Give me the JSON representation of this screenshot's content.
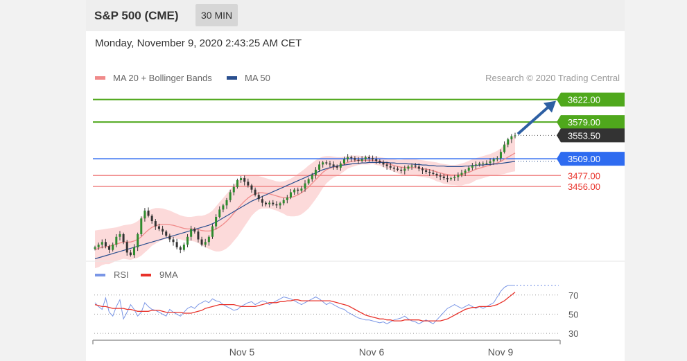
{
  "header": {
    "title": "S&P 500 (CME)",
    "timeframe": "30 MIN"
  },
  "datetime": "Monday, November 9, 2020 2:43:25 AM CET",
  "copyright": "Research © 2020 Trading Central",
  "colors": {
    "resistance": "#4fa81c",
    "pivot": "#2e6bf0",
    "support": "#f08a8a",
    "support_text": "#e8322a",
    "current": "#333333",
    "ma20": "#f08a8a",
    "band": "#fbd3d3",
    "ma50": "#2a4f8f",
    "arrow": "#2d5fa3",
    "rsi": "#7a96e6",
    "rsi_ma": "#e8322a",
    "candle": "#2e8b2e"
  },
  "chart_data": [
    {
      "type": "candlestick",
      "legend": [
        {
          "name": "MA 20 + Bollinger Bands",
          "color": "#f08a8a"
        },
        {
          "name": "MA 50",
          "color": "#2a4f8f"
        }
      ],
      "ylim": [
        3320,
        3640
      ],
      "x_ticks": [
        "Nov 5",
        "Nov 6",
        "Nov 9"
      ],
      "price_levels": [
        {
          "label": "3622.00",
          "value": 3622.0,
          "kind": "resistance"
        },
        {
          "label": "3579.00",
          "value": 3579.0,
          "kind": "resistance"
        },
        {
          "label": "3553.50",
          "value": 3553.5,
          "kind": "current"
        },
        {
          "label": "3509.00",
          "value": 3509.0,
          "kind": "pivot"
        },
        {
          "label": "3477.00",
          "value": 3477.0,
          "kind": "support"
        },
        {
          "label": "3456.00",
          "value": 3456.0,
          "kind": "support"
        }
      ],
      "close": [
        3340,
        3345,
        3350,
        3342,
        3335,
        3345,
        3360,
        3365,
        3350,
        3330,
        3325,
        3340,
        3365,
        3395,
        3410,
        3400,
        3390,
        3380,
        3375,
        3370,
        3362,
        3355,
        3350,
        3340,
        3335,
        3345,
        3360,
        3375,
        3370,
        3355,
        3345,
        3350,
        3360,
        3380,
        3398,
        3412,
        3420,
        3430,
        3445,
        3455,
        3468,
        3472,
        3465,
        3458,
        3450,
        3440,
        3432,
        3425,
        3422,
        3425,
        3422,
        3420,
        3424,
        3430,
        3435,
        3445,
        3450,
        3448,
        3452,
        3462,
        3470,
        3478,
        3488,
        3498,
        3502,
        3500,
        3498,
        3495,
        3492,
        3500,
        3508,
        3512,
        3510,
        3507,
        3505,
        3508,
        3512,
        3510,
        3508,
        3505,
        3502,
        3498,
        3495,
        3492,
        3490,
        3488,
        3486,
        3490,
        3494,
        3496,
        3494,
        3490,
        3487,
        3484,
        3482,
        3480,
        3477,
        3475,
        3472,
        3470,
        3472,
        3474,
        3478,
        3482,
        3486,
        3492,
        3496,
        3498,
        3500,
        3500,
        3501,
        3504,
        3508,
        3510,
        3522,
        3536,
        3546,
        3552,
        3553.5
      ],
      "ma20": [
        3335,
        3338,
        3340,
        3341,
        3342,
        3344,
        3346,
        3348,
        3350,
        3350,
        3350,
        3352,
        3355,
        3360,
        3367,
        3373,
        3378,
        3381,
        3383,
        3384,
        3384,
        3383,
        3382,
        3380,
        3378,
        3376,
        3375,
        3375,
        3375,
        3374,
        3372,
        3371,
        3371,
        3372,
        3375,
        3379,
        3384,
        3390,
        3397,
        3405,
        3413,
        3421,
        3428,
        3434,
        3439,
        3442,
        3444,
        3444,
        3443,
        3442,
        3440,
        3438,
        3436,
        3435,
        3434,
        3435,
        3437,
        3440,
        3444,
        3449,
        3455,
        3462,
        3469,
        3476,
        3483,
        3488,
        3491,
        3493,
        3494,
        3496,
        3499,
        3502,
        3504,
        3505,
        3506,
        3506,
        3506,
        3506,
        3506,
        3505,
        3504,
        3502,
        3500,
        3498,
        3496,
        3494,
        3493,
        3492,
        3492,
        3492,
        3492,
        3491,
        3490,
        3489,
        3488,
        3486,
        3484,
        3482,
        3480,
        3479,
        3478,
        3478,
        3478,
        3479,
        3481,
        3483,
        3486,
        3489,
        3491,
        3493,
        3495,
        3497,
        3499,
        3501,
        3504,
        3508,
        3512,
        3516,
        3520
      ],
      "upper_band": [
        3372,
        3373,
        3374,
        3375,
        3376,
        3377,
        3378,
        3380,
        3382,
        3383,
        3384,
        3386,
        3390,
        3396,
        3404,
        3410,
        3413,
        3415,
        3415,
        3414,
        3412,
        3410,
        3407,
        3404,
        3401,
        3399,
        3398,
        3398,
        3399,
        3400,
        3400,
        3402,
        3405,
        3410,
        3418,
        3426,
        3434,
        3442,
        3450,
        3458,
        3466,
        3472,
        3476,
        3478,
        3478,
        3477,
        3476,
        3474,
        3472,
        3470,
        3468,
        3466,
        3465,
        3466,
        3468,
        3471,
        3475,
        3480,
        3485,
        3490,
        3496,
        3501,
        3506,
        3510,
        3513,
        3514,
        3514,
        3513,
        3512,
        3512,
        3513,
        3514,
        3515,
        3515,
        3515,
        3514,
        3514,
        3514,
        3513,
        3513,
        3512,
        3511,
        3510,
        3509,
        3508,
        3507,
        3507,
        3508,
        3508,
        3508,
        3508,
        3507,
        3506,
        3505,
        3504,
        3503,
        3502,
        3500,
        3499,
        3498,
        3497,
        3497,
        3498,
        3500,
        3502,
        3505,
        3508,
        3510,
        3512,
        3514,
        3516,
        3518,
        3521,
        3524,
        3529,
        3536,
        3542,
        3548,
        3555
      ],
      "lower_band": [
        3300,
        3302,
        3306,
        3308,
        3308,
        3311,
        3314,
        3316,
        3318,
        3317,
        3316,
        3318,
        3320,
        3324,
        3330,
        3336,
        3343,
        3347,
        3351,
        3354,
        3356,
        3356,
        3357,
        3356,
        3355,
        3353,
        3352,
        3352,
        3351,
        3348,
        3344,
        3340,
        3337,
        3334,
        3332,
        3332,
        3334,
        3338,
        3344,
        3352,
        3360,
        3370,
        3380,
        3390,
        3400,
        3407,
        3412,
        3414,
        3414,
        3414,
        3412,
        3410,
        3407,
        3404,
        3400,
        3399,
        3399,
        3400,
        3403,
        3408,
        3414,
        3423,
        3432,
        3442,
        3453,
        3462,
        3468,
        3473,
        3476,
        3480,
        3485,
        3490,
        3493,
        3495,
        3497,
        3498,
        3498,
        3498,
        3499,
        3497,
        3496,
        3493,
        3490,
        3487,
        3484,
        3481,
        3479,
        3476,
        3476,
        3476,
        3476,
        3475,
        3474,
        3473,
        3472,
        3469,
        3466,
        3464,
        3461,
        3460,
        3459,
        3459,
        3458,
        3458,
        3460,
        3461,
        3464,
        3468,
        3470,
        3472,
        3474,
        3476,
        3477,
        3478,
        3479,
        3480,
        3482,
        3484,
        3485
      ],
      "ma50": [
        3318,
        3320,
        3322,
        3324,
        3326,
        3328,
        3330,
        3332,
        3334,
        3336,
        3338,
        3340,
        3342,
        3344,
        3346,
        3348,
        3350,
        3352,
        3354,
        3356,
        3358,
        3360,
        3362,
        3364,
        3366,
        3368,
        3370,
        3372,
        3374,
        3376,
        3378,
        3380,
        3382,
        3385,
        3388,
        3392,
        3396,
        3400,
        3404,
        3408,
        3412,
        3416,
        3420,
        3424,
        3428,
        3431,
        3434,
        3437,
        3440,
        3443,
        3446,
        3449,
        3452,
        3455,
        3458,
        3461,
        3464,
        3467,
        3470,
        3473,
        3476,
        3479,
        3482,
        3485,
        3488,
        3490,
        3492,
        3494,
        3495,
        3496,
        3497,
        3498,
        3499,
        3500,
        3500,
        3501,
        3501,
        3502,
        3502,
        3502,
        3502,
        3502,
        3502,
        3501,
        3501,
        3500,
        3500,
        3500,
        3499,
        3499,
        3498,
        3498,
        3497,
        3497,
        3496,
        3496,
        3495,
        3495,
        3495,
        3494,
        3494,
        3494,
        3494,
        3494,
        3495,
        3495,
        3496,
        3496,
        3497,
        3497,
        3498,
        3498,
        3499,
        3499,
        3500,
        3501,
        3502,
        3503,
        3504
      ]
    },
    {
      "type": "line",
      "legend": [
        {
          "name": "RSI",
          "color": "#7a96e6"
        },
        {
          "name": "9MA",
          "color": "#e8322a"
        }
      ],
      "ylim": [
        25,
        85
      ],
      "y_ticks": [
        "70",
        "50",
        "30"
      ],
      "series": [
        {
          "name": "RSI",
          "values": [
            62,
            58,
            55,
            67,
            52,
            48,
            58,
            65,
            45,
            52,
            60,
            55,
            48,
            52,
            62,
            58,
            55,
            54,
            52,
            50,
            48,
            55,
            52,
            50,
            48,
            52,
            56,
            58,
            56,
            60,
            62,
            64,
            62,
            66,
            64,
            63,
            60,
            58,
            56,
            54,
            55,
            58,
            60,
            62,
            63,
            60,
            62,
            64,
            63,
            60,
            62,
            64,
            66,
            68,
            67,
            66,
            64,
            62,
            60,
            62,
            64,
            66,
            68,
            66,
            63,
            60,
            62,
            60,
            58,
            56,
            55,
            52,
            50,
            48,
            46,
            45,
            44,
            44,
            43,
            42,
            41,
            42,
            40,
            42,
            44,
            45,
            46,
            48,
            45,
            43,
            42,
            40,
            42,
            44,
            42,
            40,
            44,
            48,
            52,
            56,
            58,
            60,
            58,
            56,
            58,
            60,
            58,
            56,
            58,
            56,
            58,
            60,
            62,
            68,
            74,
            78,
            80,
            80,
            80
          ]
        },
        {
          "name": "9MA",
          "values": [
            60,
            59,
            58,
            58,
            57,
            56,
            56,
            56,
            56,
            55,
            55,
            54,
            53,
            53,
            53,
            53,
            54,
            54,
            54,
            53,
            52,
            52,
            52,
            52,
            52,
            51,
            51,
            51,
            52,
            53,
            54,
            56,
            57,
            58,
            59,
            60,
            60,
            60,
            60,
            60,
            59,
            58,
            58,
            58,
            58,
            58,
            59,
            60,
            61,
            62,
            62,
            62,
            63,
            63,
            64,
            64,
            65,
            65,
            64,
            64,
            64,
            64,
            64,
            64,
            64,
            64,
            64,
            63,
            62,
            61,
            60,
            59,
            57,
            55,
            53,
            51,
            49,
            48,
            47,
            46,
            45,
            45,
            44,
            44,
            43,
            43,
            43,
            44,
            44,
            44,
            44,
            44,
            43,
            43,
            43,
            43,
            43,
            43,
            44,
            45,
            47,
            49,
            51,
            53,
            55,
            56,
            57,
            57,
            58,
            58,
            58,
            58,
            59,
            60,
            62,
            64,
            67,
            70,
            73
          ]
        }
      ]
    }
  ]
}
